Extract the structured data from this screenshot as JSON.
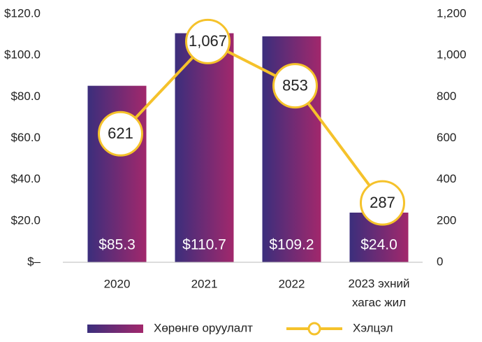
{
  "chart_data": {
    "type": "bar_line",
    "categories": [
      "2020",
      "2021",
      "2022",
      "2023 эхний хагас жил"
    ],
    "series": [
      {
        "name": "Хөрөнгө оруулалт",
        "type": "bar",
        "color": "#a2286c",
        "gradient_start": "#3b2e7c",
        "values": [
          85.3,
          110.7,
          109.2,
          24.0
        ],
        "value_labels": [
          "$85.3",
          "$110.7",
          "$109.2",
          "$24.0"
        ]
      },
      {
        "name": "Хэлцэл",
        "type": "line",
        "axis": "y2",
        "color": "#f5c22b",
        "values": [
          621,
          1067,
          853,
          287
        ],
        "value_labels": [
          "621",
          "1,067",
          "853",
          "287"
        ]
      }
    ],
    "ylim": [
      0,
      120
    ],
    "yticks": [
      {
        "value": 0,
        "label": "$–"
      },
      {
        "value": 20,
        "label": "$20.0"
      },
      {
        "value": 40,
        "label": "$40.0"
      },
      {
        "value": 60,
        "label": "$60.0"
      },
      {
        "value": 80,
        "label": "$80.0"
      },
      {
        "value": 100,
        "label": "$100.0"
      },
      {
        "value": 120,
        "label": "$120.0"
      }
    ],
    "y2lim": [
      0,
      1200
    ],
    "y2ticks": [
      0,
      200,
      400,
      600,
      800,
      {
        "value": 1000,
        "label": "1,000"
      },
      {
        "value": 1200,
        "label": "1,200"
      }
    ],
    "legend": "bottom"
  }
}
